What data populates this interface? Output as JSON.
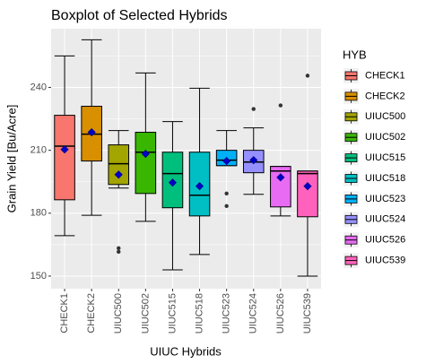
{
  "chart_data": {
    "type": "boxplot",
    "title": "Boxplot of Selected Hybrids",
    "x_label": "UIUC Hybrids",
    "y_label": "Grain Yield [Bu/Acre]",
    "legend_title": "HYB",
    "categories": [
      "CHECK1",
      "CHECK2",
      "UIUC500",
      "UIUC502",
      "UIUC515",
      "UIUC518",
      "UIUC523",
      "UIUC524",
      "UIUC526",
      "UIUC539"
    ],
    "colors": [
      "#F8766D",
      "#D89000",
      "#A3A500",
      "#39B600",
      "#00BF7D",
      "#00BFC4",
      "#00B0F6",
      "#9590FF",
      "#E76BF3",
      "#FF62BC"
    ],
    "whisker_low": [
      169.3,
      179,
      192,
      176.1,
      153,
      160.3,
      202.7,
      189,
      178.7,
      150
    ],
    "q1": [
      186.4,
      204.9,
      193.7,
      189.4,
      182.6,
      178.7,
      202.7,
      199.3,
      183,
      178.3
    ],
    "median": [
      212,
      217.7,
      203.6,
      209.1,
      198.9,
      188.6,
      205.3,
      204.4,
      200.1,
      198.9
    ],
    "q3": [
      226.7,
      231,
      212.6,
      218.6,
      209.1,
      209.1,
      210,
      210,
      202.3,
      200.1
    ],
    "whisker_high": [
      255,
      262.7,
      219.4,
      246.9,
      223.7,
      239.6,
      219.4,
      220.7,
      202.3,
      200.1
    ],
    "mean": [
      210.4,
      218.6,
      198.4,
      208.3,
      194.6,
      192.9,
      204.9,
      205.3,
      197.1,
      192.9
    ],
    "outliers": [
      [],
      [],
      [
        163.3,
        161.6
      ],
      [],
      [],
      [],
      [
        189.4,
        183.4
      ],
      [
        229.7
      ],
      [
        231.4
      ],
      [
        245.6
      ]
    ],
    "mean_color": "#0000CD",
    "outlier_color": "#333333",
    "ylim": [
      144,
      268
    ],
    "yticks": [
      150,
      180,
      210,
      240
    ],
    "yticks_minor": [
      165,
      195,
      225,
      255
    ],
    "grid": true,
    "legend": "right"
  }
}
